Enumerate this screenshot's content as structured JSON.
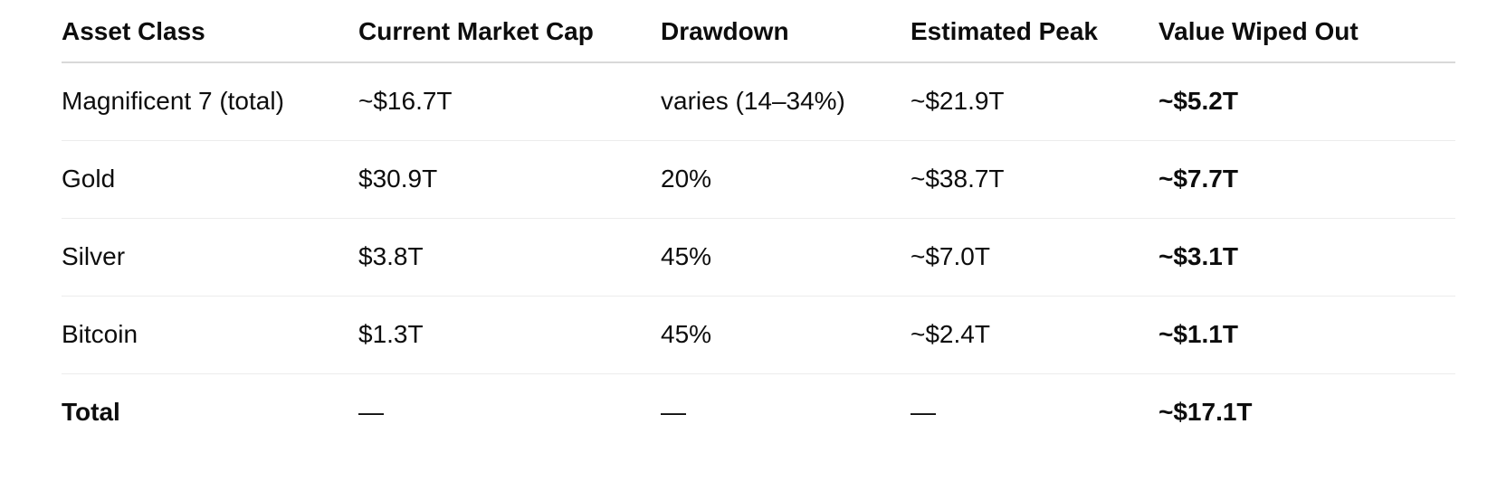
{
  "page": {
    "background": "#ffffff",
    "text_color": "#0d0d0d",
    "header_divider_color": "#d9d9d9",
    "row_divider_color": "#ececec"
  },
  "chart_data": {
    "type": "table",
    "columns": [
      "Asset Class",
      "Current Market Cap",
      "Drawdown",
      "Estimated Peak",
      "Value Wiped Out"
    ],
    "rows": [
      [
        "Magnificent 7 (total)",
        "~$16.7T",
        "varies (14–34%)",
        "~$21.9T",
        "~$5.2T"
      ],
      [
        "Gold",
        "$30.9T",
        "20%",
        "~$38.7T",
        "~$7.7T"
      ],
      [
        "Silver",
        "$3.8T",
        "45%",
        "~$7.0T",
        "~$3.1T"
      ],
      [
        "Bitcoin",
        "$1.3T",
        "45%",
        "~$2.4T",
        "~$1.1T"
      ],
      [
        "Total",
        "—",
        "—",
        "—",
        "~$17.1T"
      ]
    ],
    "layout": {
      "header_bold": true,
      "bold_column": "Value Wiped Out",
      "bold_row": "Total",
      "grid": "horizontal-dividers-only"
    }
  }
}
